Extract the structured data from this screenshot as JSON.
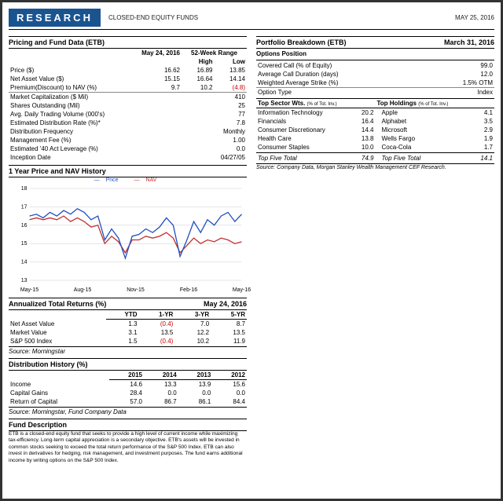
{
  "header": {
    "brand": "RESEARCH",
    "subtitle": "CLOSED-END EQUITY FUNDS",
    "date": "MAY 25, 2016"
  },
  "pricing": {
    "title": "Pricing and Fund Data (ETB)",
    "date_col": "May 24, 2016",
    "range_col": "52-Week Range",
    "high": "High",
    "low": "Low",
    "rows_priced": [
      {
        "label": "Price ($)",
        "v": "16.62",
        "h": "16.89",
        "l": "13.85"
      },
      {
        "label": "Net Asset Value ($)",
        "v": "15.15",
        "h": "16.64",
        "l": "14.14"
      },
      {
        "label": "Premium(Discount) to NAV (%)",
        "v": "9.7",
        "h": "10.2",
        "l": "(4.8)",
        "lneg": true
      }
    ],
    "rows_single": [
      {
        "label": "Market Capitalization ($ Mil)",
        "v": "410"
      },
      {
        "label": "Shares Outstanding (Mil)",
        "v": "25"
      },
      {
        "label": "Avg. Daily Trading Volume (000's)",
        "v": "77"
      },
      {
        "label": "Estimated Distribution Rate (%)*",
        "v": "7.8"
      },
      {
        "label": "Distribution Frequency",
        "v": "Monthly"
      },
      {
        "label": "Management Fee (%)",
        "v": "1.00"
      },
      {
        "label": "Estimated '40 Act Leverage (%)",
        "v": "0.0"
      },
      {
        "label": "Inception Date",
        "v": "04/27/05"
      }
    ]
  },
  "chart": {
    "title": "1 Year Price and NAV History",
    "series": [
      {
        "name": "Price",
        "color": "#2050c0"
      },
      {
        "name": "NAV",
        "color": "#c03030"
      }
    ],
    "ylim": [
      13,
      18
    ],
    "yticks": [
      13,
      14,
      15,
      16,
      17,
      18
    ],
    "xticks": [
      "May-15",
      "Aug-15",
      "Nov-15",
      "Feb-16",
      "May-16"
    ],
    "price": [
      16.5,
      16.6,
      16.4,
      16.7,
      16.5,
      16.8,
      16.6,
      16.9,
      16.7,
      16.3,
      16.5,
      15.2,
      15.8,
      15.3,
      14.2,
      15.4,
      15.5,
      15.8,
      15.6,
      15.9,
      16.4,
      16.0,
      14.3,
      15.2,
      16.2,
      15.6,
      16.3,
      16.0,
      16.5,
      16.7,
      16.2,
      16.6
    ],
    "nav": [
      16.3,
      16.4,
      16.3,
      16.4,
      16.3,
      16.5,
      16.2,
      16.4,
      16.2,
      15.9,
      16.0,
      15.0,
      15.4,
      15.1,
      14.5,
      15.2,
      15.2,
      15.4,
      15.3,
      15.4,
      15.6,
      15.3,
      14.5,
      14.9,
      15.3,
      15.0,
      15.2,
      15.1,
      15.3,
      15.2,
      15.0,
      15.1
    ],
    "bg": "#ffffff",
    "grid": "#cccccc"
  },
  "returns": {
    "title": "Annualized Total Returns (%)",
    "date": "May 24, 2016",
    "cols": [
      "YTD",
      "1-YR",
      "3-YR",
      "5-YR"
    ],
    "rows": [
      {
        "label": "Net Asset Value",
        "v": [
          "1.3",
          "(0.4)",
          "7.0",
          "8.7"
        ],
        "neg": [
          false,
          true,
          false,
          false
        ]
      },
      {
        "label": "Market Value",
        "v": [
          "3.1",
          "13.5",
          "12.2",
          "13.5"
        ]
      },
      {
        "label": "S&P 500 Index",
        "v": [
          "1.5",
          "(0.4)",
          "10.2",
          "11.9"
        ],
        "neg": [
          false,
          true,
          false,
          false
        ]
      }
    ],
    "source": "Source: Morningstar"
  },
  "dist": {
    "title": "Distribution History (%)",
    "cols": [
      "2015",
      "2014",
      "2013",
      "2012"
    ],
    "rows": [
      {
        "label": "Income",
        "v": [
          "14.6",
          "13.3",
          "13.9",
          "15.6"
        ]
      },
      {
        "label": "Capital Gains",
        "v": [
          "28.4",
          "0.0",
          "0.0",
          "0.0"
        ]
      },
      {
        "label": "Return of Capital",
        "v": [
          "57.0",
          "86.7",
          "86.1",
          "84.4"
        ]
      }
    ],
    "source": "Source: Morningstar, Fund Company Data"
  },
  "desc": {
    "title": "Fund Description",
    "text": "ETB is a closed-end equity fund that seeks to provide a high level of current income while maximizing tax-efficiency. Long-term capital appreciation is a secondary objective. ETB's assets will be invested in common stocks seeking to exceed the total return performance of the S&P 500 Index. ETB can also invest in derivatives for hedging, risk management, and investment purposes. The fund earns additional income by writing options on the S&P 500 Index."
  },
  "portfolio": {
    "title": "Portfolio Breakdown (ETB)",
    "date": "March 31, 2016",
    "options_title": "Options Position",
    "options": [
      {
        "label": "Covered Call (% of Equity)",
        "v": "99.0"
      },
      {
        "label": "Average Call Duration (days)",
        "v": "12.0"
      },
      {
        "label": "Weighted Average Strike (%)",
        "v": "1.5% OTM"
      },
      {
        "label": "Option Type",
        "v": "Index"
      }
    ],
    "sectors_title": "Top Sector Wts.",
    "sectors_sub": "(% of Tot. Inv.)",
    "holdings_title": "Top Holdings",
    "holdings_sub": "(% of Tot. Inv.)",
    "rows": [
      {
        "s": "Information Technology",
        "sv": "20.2",
        "h": "Apple",
        "hv": "4.1"
      },
      {
        "s": "Financials",
        "sv": "16.4",
        "h": "Alphabet",
        "hv": "3.5"
      },
      {
        "s": "Consumer Discretionary",
        "sv": "14.4",
        "h": "Microsoft",
        "hv": "2.9"
      },
      {
        "s": "Health Care",
        "sv": "13.8",
        "h": "Wells Fargo",
        "hv": "1.9"
      },
      {
        "s": "Consumer Staples",
        "sv": "10.0",
        "h": "Coca-Cola",
        "hv": "1.7"
      }
    ],
    "total": {
      "s": "Top Five Total",
      "sv": "74.9",
      "h": "Top Five Total",
      "hv": "14.1"
    },
    "source": "Source: Company Data, Morgan Stanley Wealth Management CEF Research."
  }
}
